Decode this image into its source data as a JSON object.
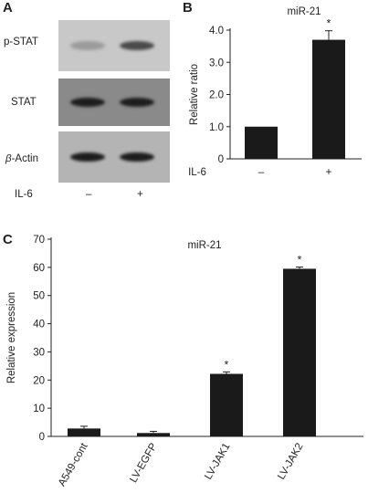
{
  "panel_a": {
    "letter": "A",
    "rows": [
      {
        "label": "p-STAT",
        "bg": "#c8c8c8",
        "bands": [
          0.25,
          0.7
        ]
      },
      {
        "label": "STAT",
        "bg": "#8a8a8a",
        "bands": [
          0.95,
          0.95
        ]
      },
      {
        "label_prefix": "β",
        "label": "-Actin",
        "bg": "#b4b4b4",
        "bands": [
          0.95,
          0.95
        ]
      }
    ],
    "treatment_label": "IL-6",
    "lane_labels": [
      "–",
      "+"
    ]
  },
  "chart_data": [
    {
      "panel": "B",
      "type": "bar",
      "title": "miR-21",
      "ylabel": "Relative ratio",
      "xlabel": "IL-6",
      "categories": [
        "–",
        "+"
      ],
      "values": [
        1.0,
        3.7
      ],
      "errors": [
        0,
        0.28
      ],
      "significance": [
        "",
        "*"
      ],
      "ylim": [
        0,
        4.0
      ],
      "yticks": [
        "0",
        "1.0",
        "2.0",
        "3.0",
        "4.0"
      ],
      "bar_color": "#1a1a1a"
    },
    {
      "panel": "C",
      "type": "bar",
      "title": "miR-21",
      "ylabel": "Relative expression",
      "categories": [
        "A549-cont",
        "LV-EGFP",
        "LV-JAK1",
        "LV-JAK2"
      ],
      "values": [
        2.8,
        1.2,
        22.2,
        59.5
      ],
      "errors": [
        0.8,
        0.6,
        0.7,
        0.6
      ],
      "significance": [
        "",
        "",
        "*",
        "*"
      ],
      "ylim": [
        0,
        70
      ],
      "yticks": [
        "0",
        "10",
        "20",
        "30",
        "40",
        "50",
        "60",
        "70"
      ],
      "bar_color": "#1a1a1a"
    }
  ]
}
